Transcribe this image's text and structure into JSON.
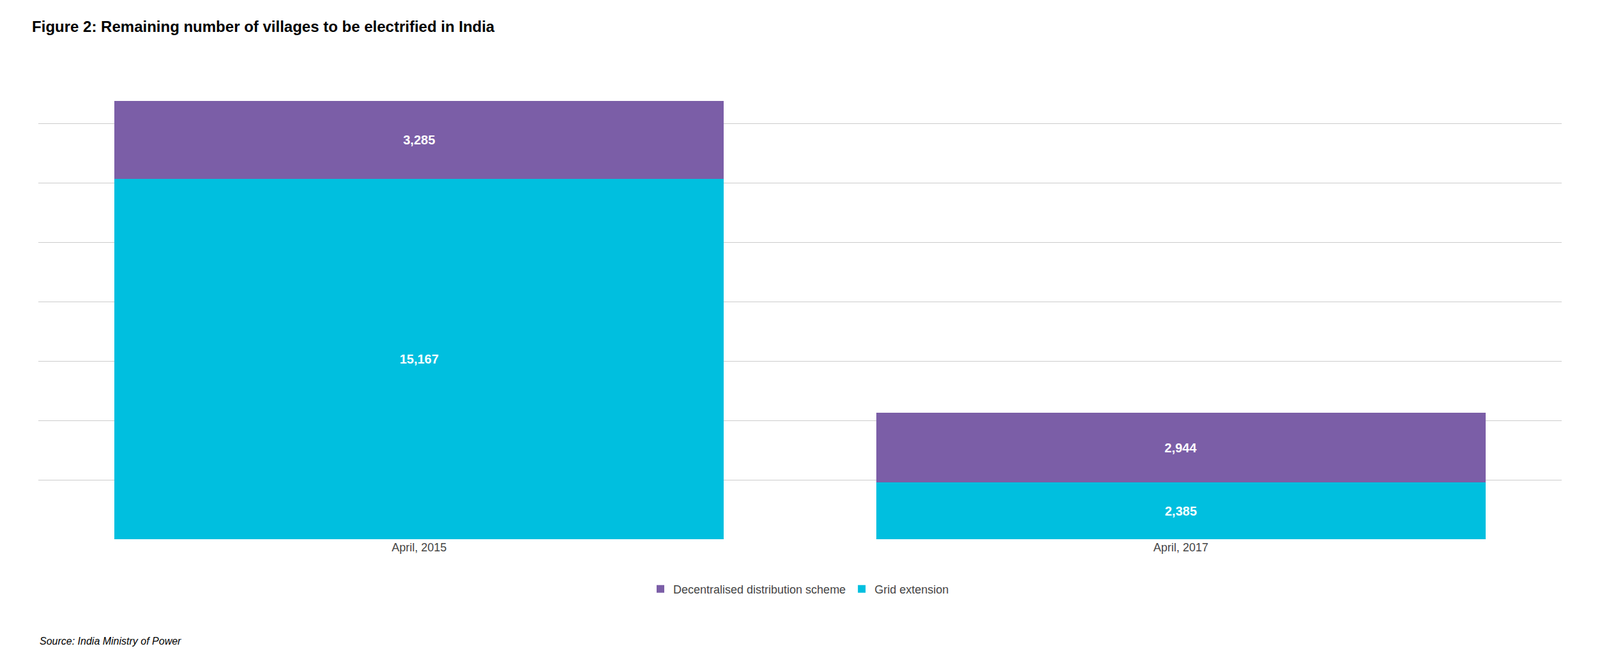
{
  "chart_data": {
    "type": "bar",
    "title": "Figure 2: Remaining number of villages to be electrified in India",
    "categories": [
      "April, 2015",
      "April, 2017"
    ],
    "series": [
      {
        "name": "Grid extension",
        "color": "#00BFDF",
        "values": [
          15167,
          2385
        ],
        "value_labels": [
          "15,167",
          "2,385"
        ]
      },
      {
        "name": "Decentralised distribution scheme",
        "color": "#7B5EA7",
        "values": [
          3285,
          2944
        ],
        "value_labels": [
          "3,285",
          "2,944"
        ]
      }
    ],
    "stacked": true,
    "data_labels": true,
    "ylim": [
      0,
      20000
    ],
    "yticks": [
      0,
      2500,
      5000,
      7500,
      10000,
      12500,
      15000,
      17500,
      20000
    ],
    "tick_labels": "x",
    "grid": true,
    "legend": "bottom",
    "annotations": [
      "Source: India Ministry of Power"
    ]
  }
}
